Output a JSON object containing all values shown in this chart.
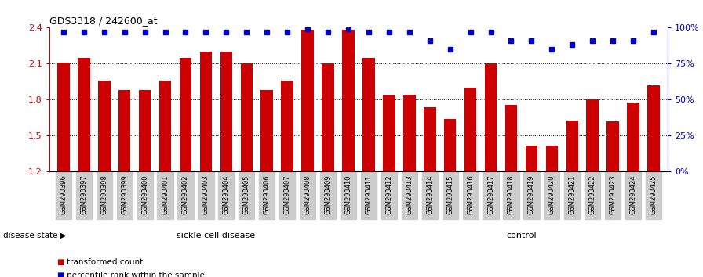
{
  "title": "GDS3318 / 242600_at",
  "categories": [
    "GSM290396",
    "GSM290397",
    "GSM290398",
    "GSM290399",
    "GSM290400",
    "GSM290401",
    "GSM290402",
    "GSM290403",
    "GSM290404",
    "GSM290405",
    "GSM290406",
    "GSM290407",
    "GSM290408",
    "GSM290409",
    "GSM290410",
    "GSM290411",
    "GSM290412",
    "GSM290413",
    "GSM290414",
    "GSM290415",
    "GSM290416",
    "GSM290417",
    "GSM290418",
    "GSM290419",
    "GSM290420",
    "GSM290421",
    "GSM290422",
    "GSM290423",
    "GSM290424",
    "GSM290425"
  ],
  "bar_values": [
    2.11,
    2.15,
    1.96,
    1.88,
    1.88,
    1.96,
    2.15,
    2.2,
    2.2,
    2.1,
    1.88,
    1.96,
    2.38,
    2.1,
    2.38,
    2.15,
    1.84,
    1.84,
    1.74,
    1.64,
    1.9,
    2.1,
    1.76,
    1.42,
    1.42,
    1.63,
    1.8,
    1.62,
    1.78,
    1.92
  ],
  "percentile_values": [
    97,
    97,
    97,
    97,
    97,
    97,
    97,
    97,
    97,
    97,
    97,
    97,
    99,
    97,
    99,
    97,
    97,
    97,
    91,
    85,
    97,
    97,
    91,
    91,
    85,
    88,
    91,
    91,
    91,
    97
  ],
  "ylim_left": [
    1.2,
    2.4
  ],
  "ylim_right": [
    0,
    100
  ],
  "yticks_left": [
    1.2,
    1.5,
    1.8,
    2.1,
    2.4
  ],
  "yticks_right": [
    0,
    25,
    50,
    75,
    100
  ],
  "bar_color": "#cc0000",
  "dot_color": "#0000cc",
  "sickle_cell_count": 16,
  "control_count": 14,
  "sickle_cell_label": "sickle cell disease",
  "control_label": "control",
  "disease_state_label": "disease state",
  "legend_bar_label": "transformed count",
  "legend_dot_label": "percentile rank within the sample",
  "bg_color_sickle": "#ccffcc",
  "bg_color_control": "#55cc55",
  "tick_bg_color": "#cccccc",
  "bar_bottom": 1.2
}
